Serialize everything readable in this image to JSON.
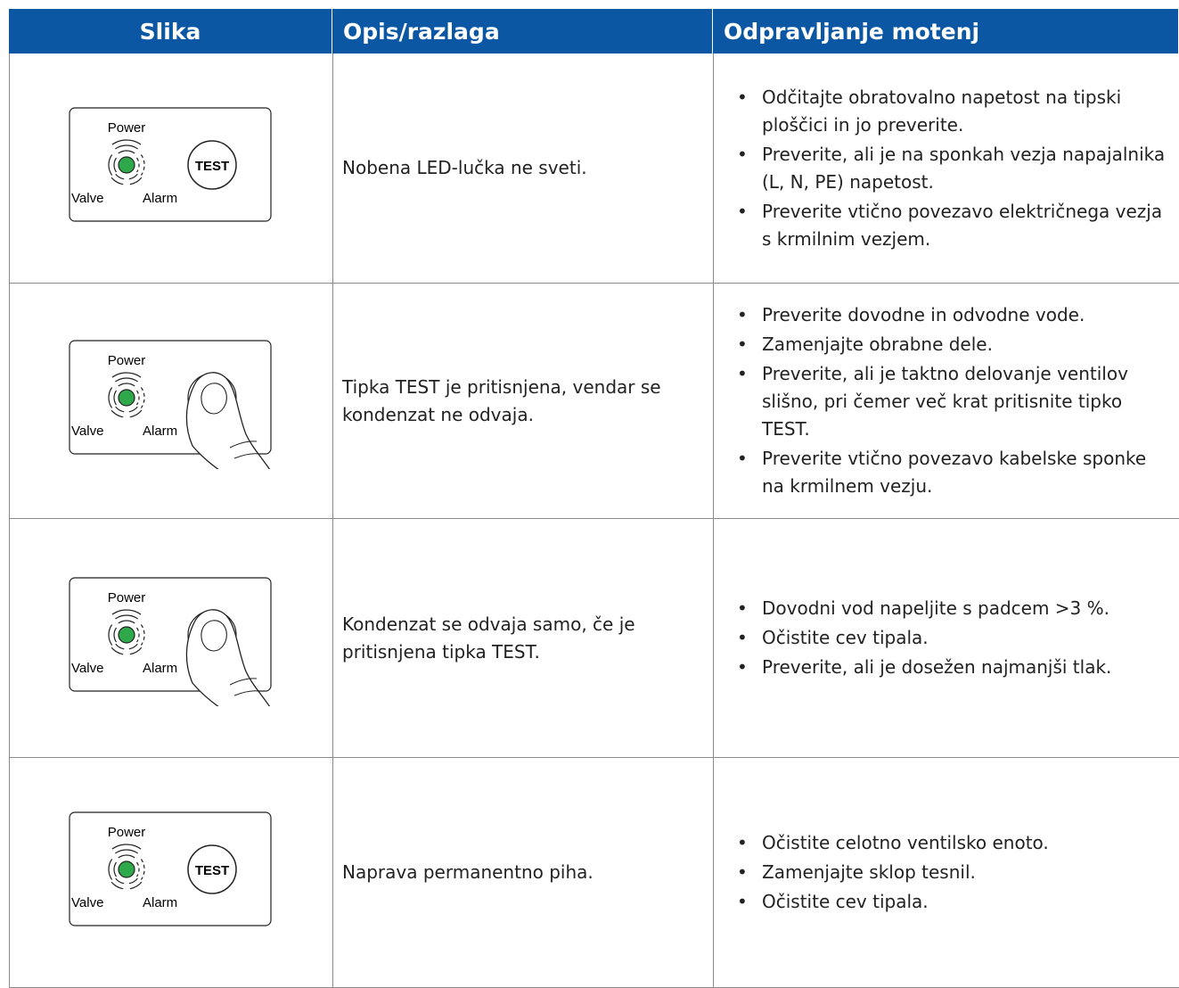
{
  "table": {
    "header": [
      "Slika",
      "Opis/razlaga",
      "Odpravljanje motenj"
    ],
    "rows": [
      {
        "image": {
          "labels": [
            "Power",
            "Valve",
            "Alarm"
          ],
          "button": "TEST"
        },
        "description": "Nobena LED-lučka ne sveti.",
        "remedies": [
          "Odčitajte obratovalno napetost na tipski ploščici in jo preverite.",
          "Preverite, ali je na sponkah vezja napajalnika (L, N, PE) napetost.",
          "Preverite vtično povezavo električnega vezja s krmilnim vezjem."
        ]
      },
      {
        "image": {
          "labels": [
            "Power",
            "Valve",
            "Alarm"
          ]
        },
        "description": "Tipka TEST je pritisnjena, vendar se kondenzat ne odvaja.",
        "remedies": [
          "Preverite dovodne in odvodne vode.",
          "Zamenjajte obrabne dele.",
          "Preverite, ali je taktno delovanje ventilov slišno, pri čemer več krat pritisnite tipko TEST.",
          "Preverite vtično povezavo kabelske sponke na krmilnem vezju."
        ]
      },
      {
        "image": {
          "labels": [
            "Power",
            "Valve",
            "Alarm"
          ]
        },
        "description": "Kondenzat se odvaja samo, če je pritisnjena tipka TEST.",
        "remedies": [
          "Dovodni vod napeljite s padcem >3 %.",
          "Očistite cev tipala.",
          "Preverite, ali je dosežen najmanjši tlak."
        ]
      },
      {
        "image": {
          "labels": [
            "Power",
            "Valve",
            "Alarm"
          ],
          "button": "TEST"
        },
        "description": "Naprava permanentno piha.",
        "remedies": [
          "Očistite celotno ventilsko enoto.",
          "Zamenjajte sklop tesnil.",
          "Očistite cev tipala."
        ]
      }
    ]
  }
}
